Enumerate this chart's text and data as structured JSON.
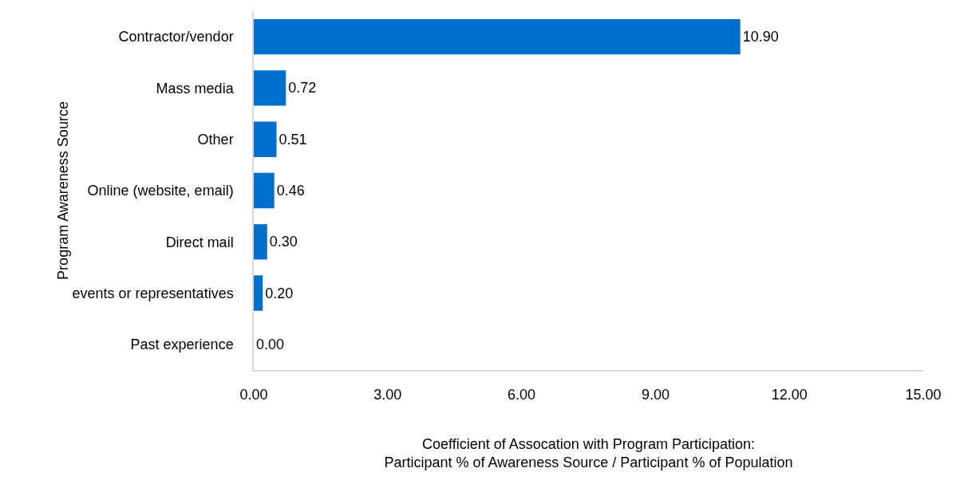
{
  "chart_data": {
    "type": "bar",
    "orientation": "horizontal",
    "categories": [
      "Contractor/vendor",
      "Mass media",
      "Other",
      "Online (website, email)",
      "Direct mail",
      "events or representatives",
      "Past experience"
    ],
    "values": [
      10.9,
      0.72,
      0.51,
      0.46,
      0.3,
      0.2,
      0.0
    ],
    "value_labels": [
      "10.90",
      "0.72",
      "0.51",
      "0.46",
      "0.30",
      "0.20",
      "0.00"
    ],
    "color": "#0070cc",
    "xlim": [
      0,
      15
    ],
    "xticks": [
      {
        "value": 0,
        "label": "0.00"
      },
      {
        "value": 3,
        "label": "3.00"
      },
      {
        "value": 6,
        "label": "6.00"
      },
      {
        "value": 9,
        "label": "9.00"
      },
      {
        "value": 12,
        "label": "12.00"
      },
      {
        "value": 15,
        "label": "15.00"
      }
    ],
    "xlabel": "Coefficient of Assocation with Program Participation:\nParticipant % of Awareness Source / Participant % of Population",
    "ylabel": "Program Awareness Source"
  }
}
